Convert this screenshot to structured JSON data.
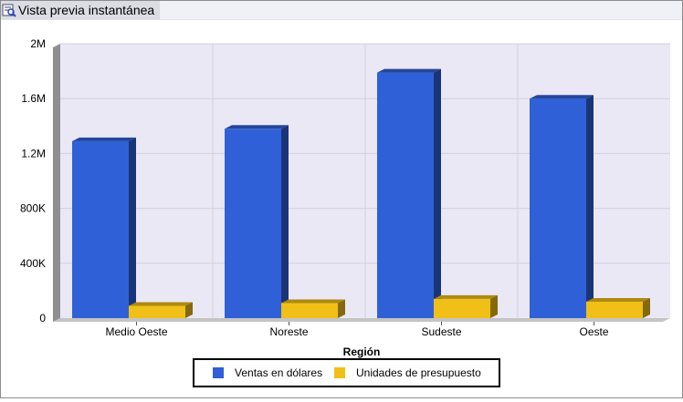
{
  "window": {
    "tab_label": "Vista previa instantánea"
  },
  "chart_data": {
    "type": "bar",
    "title": "",
    "xlabel": "Región",
    "ylabel": "",
    "categories": [
      "Medio Oeste",
      "Noreste",
      "Sudeste",
      "Oeste"
    ],
    "series": [
      {
        "name": "Ventas en dólares",
        "color": "#3060d8",
        "values": [
          1290000,
          1380000,
          1790000,
          1600000
        ]
      },
      {
        "name": "Unidades de presupuesto",
        "color": "#f0c018",
        "values": [
          90000,
          110000,
          140000,
          120000
        ]
      }
    ],
    "ylim": [
      0,
      2000000
    ],
    "yticks": [
      0,
      400000,
      800000,
      1200000,
      1600000,
      2000000
    ],
    "ytick_labels": [
      "0",
      "400K",
      "800K",
      "1.2M",
      "1.6M",
      "2M"
    ],
    "grid": true,
    "legend_position": "bottom"
  }
}
